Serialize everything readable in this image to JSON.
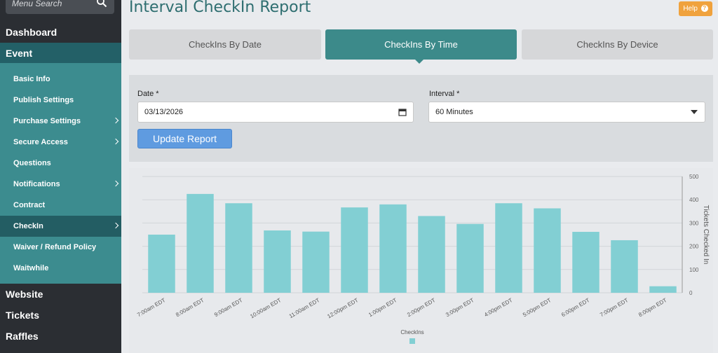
{
  "sidebar": {
    "search_placeholder": "Menu Search",
    "top_items": [
      {
        "label": "Dashboard"
      },
      {
        "label": "Event"
      }
    ],
    "event_items": [
      {
        "label": "Basic Info"
      },
      {
        "label": "Publish Settings"
      },
      {
        "label": "Purchase Settings"
      },
      {
        "label": "Secure Access"
      },
      {
        "label": "Questions"
      },
      {
        "label": "Notifications"
      },
      {
        "label": "Contract"
      },
      {
        "label": "CheckIn"
      },
      {
        "label": "Waiver / Refund Policy"
      },
      {
        "label": "Waitwhile"
      }
    ],
    "bottom_items": [
      {
        "label": "Website"
      },
      {
        "label": "Tickets"
      },
      {
        "label": "Raffles"
      }
    ]
  },
  "header": {
    "title": "Interval CheckIn Report",
    "help_label": "Help",
    "help_glyph": "?"
  },
  "tabs": [
    {
      "label": "CheckIns By Date"
    },
    {
      "label": "CheckIns By Time"
    },
    {
      "label": "CheckIns By Device"
    }
  ],
  "filters": {
    "date_label": "Date *",
    "date_value": "03/13/2026",
    "interval_label": "Interval *",
    "interval_value": "60 Minutes",
    "update_label": "Update Report"
  },
  "colors": {
    "bar": "#82cfd3",
    "accent": "#3c8a8a",
    "help": "#f0a23d"
  },
  "chart_data": {
    "type": "bar",
    "categories": [
      "7:00am EDT",
      "8:00am EDT",
      "9:00am EDT",
      "10:00am EDT",
      "11:00am EDT",
      "12:00pm EDT",
      "1:00pm EDT",
      "2:00pm EDT",
      "3:00pm EDT",
      "4:00pm EDT",
      "5:00pm EDT",
      "6:00pm EDT",
      "7:00pm EDT",
      "8:00pm EDT"
    ],
    "series": [
      {
        "name": "CheckIns",
        "values": [
          250,
          425,
          385,
          268,
          263,
          367,
          380,
          330,
          296,
          385,
          363,
          262,
          226,
          28
        ]
      }
    ],
    "ylabel": "Tickets Checked In",
    "ylim": [
      0,
      500
    ],
    "yticks": [
      0,
      100,
      200,
      300,
      400,
      500
    ],
    "grid": true,
    "legend": "bottom"
  }
}
